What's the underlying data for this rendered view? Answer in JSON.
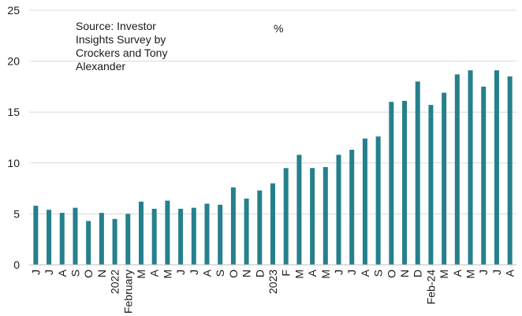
{
  "chart_data": {
    "type": "bar",
    "title": "",
    "xlabel": "",
    "ylabel": "",
    "unit": "%",
    "annotation": "Source: Investor\nInsights Survey by\nCrockers and Tony\nAlexander",
    "ylim": [
      0,
      25
    ],
    "yticks": [
      0,
      5,
      10,
      15,
      20,
      25
    ],
    "grid": true,
    "color": "#25808C",
    "categories": [
      "J",
      "J",
      "A",
      "S",
      "O",
      "N",
      "2022",
      "February",
      "M",
      "A",
      "M",
      "J",
      "J",
      "A",
      "S",
      "O",
      "N",
      "D",
      "2023",
      "F",
      "M",
      "A",
      "M",
      "J",
      "J",
      "A",
      "S",
      "O",
      "N",
      "D",
      "Feb-24",
      "M",
      "A",
      "M",
      "J",
      "J",
      "A"
    ],
    "values": [
      5.8,
      5.4,
      5.1,
      5.6,
      4.3,
      5.1,
      4.5,
      5.0,
      6.2,
      5.5,
      6.3,
      5.5,
      5.6,
      6.0,
      5.9,
      7.6,
      6.5,
      7.3,
      8.0,
      9.5,
      10.8,
      9.5,
      9.6,
      10.8,
      11.3,
      12.4,
      12.6,
      16.0,
      16.1,
      18.0,
      15.7,
      16.9,
      18.7,
      19.1,
      17.5,
      19.1,
      18.5
    ]
  }
}
